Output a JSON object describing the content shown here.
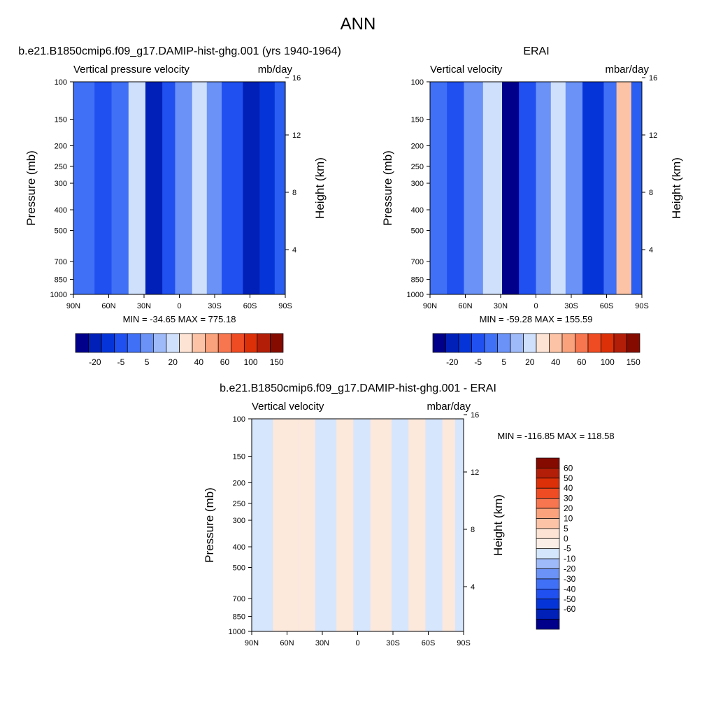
{
  "figure": {
    "title": "ANN"
  },
  "chart_data": [
    {
      "type": "heatmap",
      "title": "b.e21.B1850cmip6.f09_g17.DAMIP-hist-ghg.001 (yrs 1940-1964)",
      "field_label": "Vertical pressure velocity",
      "units": "mb/day",
      "xlabel": "",
      "ylabel": "Pressure (mb)",
      "y2label": "Height (km)",
      "x_ticks": [
        "90N",
        "60N",
        "30N",
        "0",
        "30S",
        "60S",
        "90S"
      ],
      "y_ticks": [
        "100",
        "150",
        "200",
        "250",
        "300",
        "400",
        "500",
        "700",
        "850",
        "1000"
      ],
      "y2_ticks": [
        "4",
        "8",
        "12",
        "16"
      ],
      "ylim": [
        1000,
        100
      ],
      "y_scale": "log",
      "stats": "MIN = -34.65  MAX = 775.18",
      "colorbar_labels": [
        "-20",
        "-5",
        "5",
        "20",
        "40",
        "60",
        "100",
        "150"
      ],
      "colorbar_colors": [
        "#00008b",
        "#0020b8",
        "#0535d8",
        "#2050f0",
        "#4070f5",
        "#6a92f7",
        "#9fbaf9",
        "#cfe0fc",
        "#fde3d4",
        "#fcc3a6",
        "#faa27c",
        "#f7764f",
        "#f04c23",
        "#dc3008",
        "#b21e08",
        "#850b00"
      ],
      "bands": [
        [
          0.1,
          -8
        ],
        [
          0.18,
          -12
        ],
        [
          0.26,
          -6
        ],
        [
          0.34,
          6
        ],
        [
          0.42,
          -22
        ],
        [
          0.48,
          -10
        ],
        [
          0.56,
          -4
        ],
        [
          0.63,
          8
        ],
        [
          0.7,
          -4
        ],
        [
          0.8,
          -12
        ],
        [
          0.88,
          -20
        ],
        [
          0.95,
          -14
        ]
      ]
    },
    {
      "type": "heatmap",
      "title": "ERAI",
      "field_label": "Vertical velocity",
      "units": "mbar/day",
      "xlabel": "",
      "ylabel": "Pressure (mb)",
      "y2label": "Height (km)",
      "x_ticks": [
        "90N",
        "60N",
        "30N",
        "0",
        "30S",
        "60S",
        "90S"
      ],
      "y_ticks": [
        "100",
        "150",
        "200",
        "250",
        "300",
        "400",
        "500",
        "700",
        "850",
        "1000"
      ],
      "y2_ticks": [
        "4",
        "8",
        "12",
        "16"
      ],
      "ylim": [
        1000,
        100
      ],
      "y_scale": "log",
      "stats": "MIN = -59.28  MAX = 155.59",
      "colorbar_labels": [
        "-20",
        "-5",
        "5",
        "20",
        "40",
        "60",
        "100",
        "150"
      ],
      "colorbar_colors": [
        "#00008b",
        "#0020b8",
        "#0535d8",
        "#2050f0",
        "#4070f5",
        "#6a92f7",
        "#9fbaf9",
        "#cfe0fc",
        "#fde3d4",
        "#fcc3a6",
        "#faa27c",
        "#f7764f",
        "#f04c23",
        "#dc3008",
        "#b21e08",
        "#850b00"
      ],
      "bands": [
        [
          0.08,
          -6
        ],
        [
          0.16,
          -10
        ],
        [
          0.25,
          -4
        ],
        [
          0.34,
          8
        ],
        [
          0.42,
          -24
        ],
        [
          0.5,
          -10
        ],
        [
          0.57,
          -4
        ],
        [
          0.64,
          8
        ],
        [
          0.72,
          -4
        ],
        [
          0.82,
          -14
        ],
        [
          0.88,
          -8
        ],
        [
          0.95,
          20
        ]
      ]
    },
    {
      "type": "heatmap",
      "title": "b.e21.B1850cmip6.f09_g17.DAMIP-hist-ghg.001 - ERAI",
      "field_label": "Vertical velocity",
      "units": "mbar/day",
      "xlabel": "",
      "ylabel": "Pressure (mb)",
      "y2label": "Height (km)",
      "x_ticks": [
        "90N",
        "60N",
        "30N",
        "0",
        "30S",
        "60S",
        "90S"
      ],
      "y_ticks": [
        "100",
        "150",
        "200",
        "250",
        "300",
        "400",
        "500",
        "700",
        "850",
        "1000"
      ],
      "y2_ticks": [
        "4",
        "8",
        "12",
        "16"
      ],
      "ylim": [
        1000,
        100
      ],
      "y_scale": "log",
      "stats": "MIN = -116.85  MAX = 118.58",
      "colorbar_labels": [
        "60",
        "50",
        "40",
        "30",
        "20",
        "10",
        "5",
        "0",
        "-5",
        "-10",
        "-20",
        "-30",
        "-40",
        "-50",
        "-60"
      ],
      "colorbar_colors": [
        "#850b00",
        "#b21e08",
        "#dc3008",
        "#f04c23",
        "#f7764f",
        "#faa27c",
        "#fcc3a6",
        "#fde3d4",
        "#fbeee6",
        "#d4e6fc",
        "#9fbaf9",
        "#6a92f7",
        "#4070f5",
        "#2050f0",
        "#0535d8",
        "#0020b8",
        "#00008b"
      ],
      "bands": [
        [
          0.1,
          -2
        ],
        [
          0.22,
          2
        ],
        [
          0.3,
          2
        ],
        [
          0.4,
          -2
        ],
        [
          0.48,
          2
        ],
        [
          0.56,
          -2
        ],
        [
          0.66,
          2
        ],
        [
          0.74,
          -2
        ],
        [
          0.82,
          2
        ],
        [
          0.9,
          -2
        ],
        [
          0.96,
          2
        ]
      ]
    }
  ]
}
